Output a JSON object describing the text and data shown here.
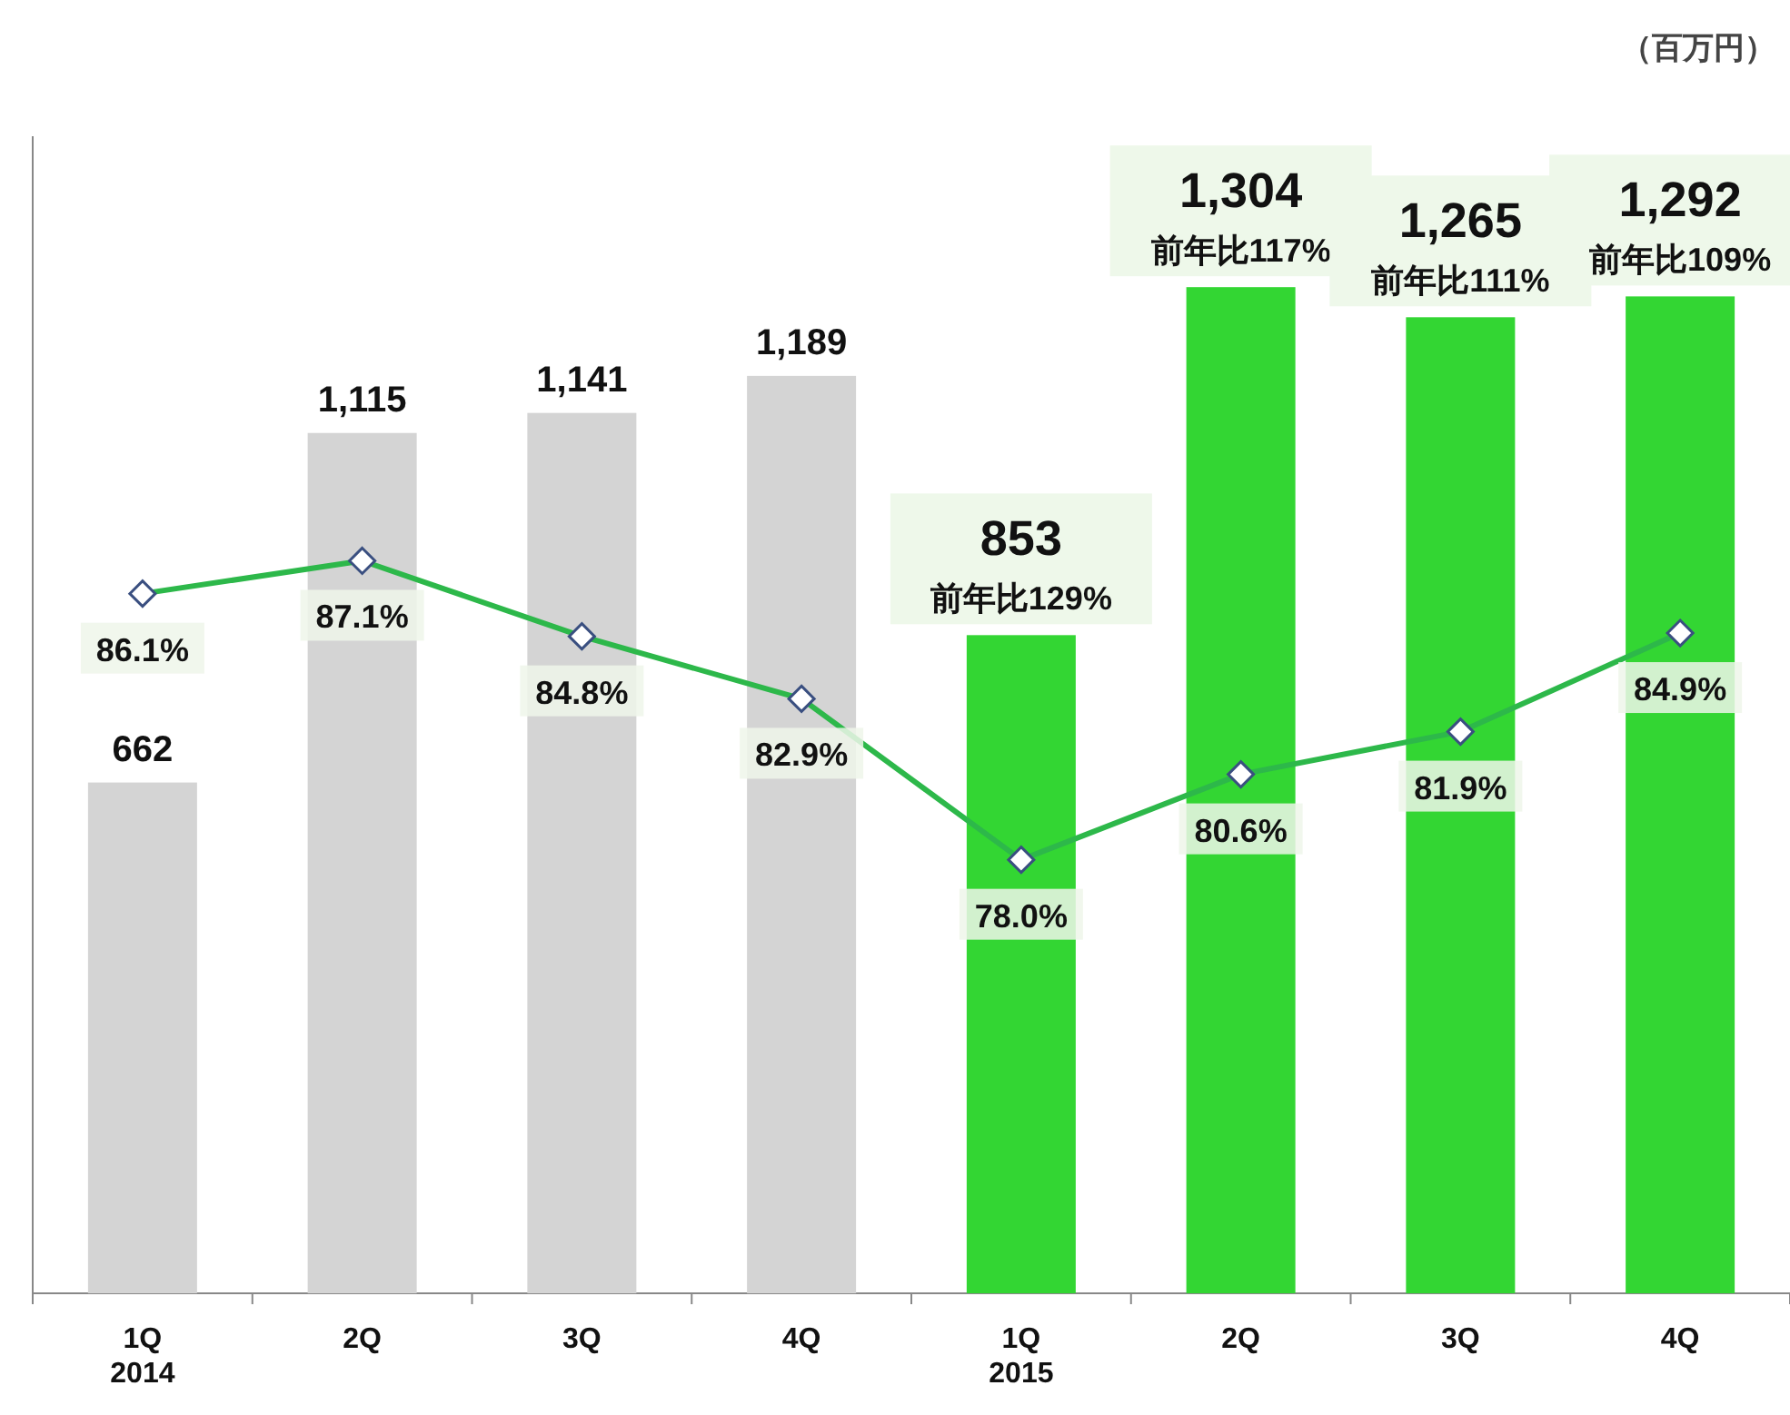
{
  "chart_data": {
    "type": "bar",
    "categories": [
      "1Q\n2014",
      "2Q",
      "3Q",
      "4Q",
      "1Q\n2015",
      "2Q",
      "3Q",
      "4Q"
    ],
    "series": [
      {
        "colors": [
          "#d4d4d4",
          "#d4d4d4",
          "#d4d4d4",
          "#d4d4d4",
          "#33d633",
          "#33d633",
          "#33d633",
          "#33d633"
        ],
        "values": [
          662,
          1115,
          1141,
          1189,
          853,
          1304,
          1265,
          1292
        ],
        "value_labels": [
          "662",
          "1,115",
          "1,141",
          "1,189",
          "853",
          "1,304",
          "1,265",
          "1,292"
        ]
      },
      {
        "type": "line",
        "axis": "y2",
        "color": "#2db84a",
        "marker": "diamond",
        "values": [
          86.1,
          87.1,
          84.8,
          82.9,
          78.0,
          80.6,
          81.9,
          84.9
        ],
        "value_labels": [
          "86.1%",
          "87.1%",
          "84.8%",
          "82.9%",
          "78.0%",
          "80.6%",
          "81.9%",
          "84.9%"
        ]
      }
    ],
    "annotations": [
      "（百万円）",
      "前年比129%",
      "前年比117%",
      "前年比111%",
      "前年比109%"
    ]
  }
}
